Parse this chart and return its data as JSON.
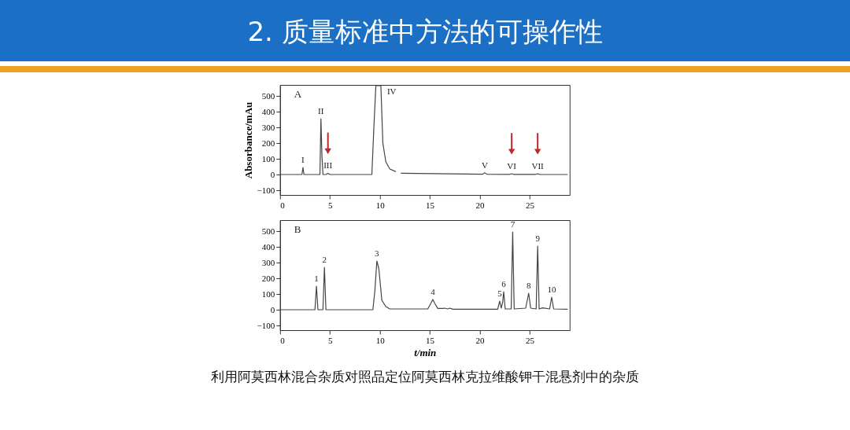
{
  "chart_data": [
    {
      "type": "line",
      "title": "2. 质量标准中方法的可操作性",
      "subtitle": "A",
      "ylabel": "Absorbance/mAu",
      "x": [
        0,
        2.2,
        2.3,
        2.4,
        4.0,
        4.1,
        4.2,
        4.3,
        4.6,
        4.8,
        5.0,
        9.2,
        9.4,
        9.6,
        10.1,
        10.3,
        10.6,
        11.0,
        11.6,
        11.75,
        12.1,
        20.3,
        20.5,
        20.7,
        23.0,
        23.2,
        23.4,
        25.6,
        25.8,
        26.0,
        28.8
      ],
      "series": [
        {
          "color": "#444444",
          "values": [
            0,
            0,
            45,
            0,
            0,
            355,
            120,
            0,
            0,
            8,
            0,
            0,
            300,
            565,
            565,
            200,
            80,
            35,
            18,
            null,
            8,
            2,
            12,
            2,
            1,
            5,
            1,
            1,
            5,
            1,
            0
          ]
        }
      ],
      "xlim": [
        0,
        29
      ],
      "xticks": [
        0,
        5,
        10,
        15,
        20,
        25
      ],
      "ylim": [
        -130,
        570
      ],
      "yticks": [
        -100,
        0,
        100,
        200,
        300,
        400,
        500
      ],
      "grid": false,
      "marker": "none",
      "line_style": "solid",
      "annotations": [
        {
          "text": "I",
          "x": 2.3,
          "y": 45
        },
        {
          "text": "II",
          "x": 4.1,
          "y": 355
        },
        {
          "text": "III",
          "x": 4.8,
          "y": 8
        },
        {
          "text": "IV",
          "x": 10.1,
          "y": 565
        },
        {
          "text": "V",
          "x": 20.5,
          "y": 12
        },
        {
          "text": "VI",
          "x": 23.2,
          "y": 5
        },
        {
          "text": "VII",
          "x": 25.8,
          "y": 5
        }
      ]
    },
    {
      "type": "line",
      "subtitle": "B",
      "xlabel": "t/min",
      "x": [
        0,
        3.5,
        3.65,
        3.8,
        4.3,
        4.45,
        4.6,
        9.3,
        9.5,
        9.7,
        9.9,
        10.2,
        10.6,
        11.0,
        14.8,
        15.1,
        15.3,
        15.5,
        15.8,
        16.3,
        16.5,
        16.8,
        17.0,
        17.3,
        21.8,
        22.0,
        22.15,
        22.3,
        22.4,
        22.55,
        23.15,
        23.3,
        23.45,
        24.6,
        24.9,
        25.1,
        25.65,
        25.8,
        25.95,
        26.3,
        27.0,
        27.2,
        27.4,
        28.8
      ],
      "series": [
        {
          "color": "#444444",
          "values": [
            0,
            0,
            150,
            0,
            0,
            270,
            0,
            0,
            120,
            310,
            260,
            60,
            20,
            5,
            5,
            40,
            65,
            40,
            8,
            8,
            10,
            5,
            10,
            3,
            3,
            55,
            10,
            50,
            115,
            5,
            5,
            495,
            5,
            10,
            105,
            10,
            5,
            405,
            5,
            12,
            5,
            80,
            5,
            3
          ]
        }
      ],
      "xlim": [
        0,
        29
      ],
      "xticks": [
        0,
        5,
        10,
        15,
        20,
        25
      ],
      "ylim": [
        -130,
        570
      ],
      "yticks": [
        -100,
        0,
        100,
        200,
        300,
        400,
        500
      ],
      "grid": false,
      "marker": "none",
      "line_style": "solid",
      "annotations": [
        {
          "text": "1",
          "x": 3.65,
          "y": 150
        },
        {
          "text": "2",
          "x": 4.45,
          "y": 270
        },
        {
          "text": "3",
          "x": 9.7,
          "y": 310
        },
        {
          "text": "4",
          "x": 15.3,
          "y": 65
        },
        {
          "text": "5",
          "x": 22.0,
          "y": 55
        },
        {
          "text": "6",
          "x": 22.4,
          "y": 115
        },
        {
          "text": "7",
          "x": 23.3,
          "y": 495
        },
        {
          "text": "8",
          "x": 24.9,
          "y": 105
        },
        {
          "text": "9",
          "x": 25.8,
          "y": 405
        },
        {
          "text": "10",
          "x": 27.2,
          "y": 80
        },
        "利用阿莫西林混合杂质对照品定位阿莫西林克拉维酸钾干混悬剂中的杂质"
      ]
    }
  ]
}
